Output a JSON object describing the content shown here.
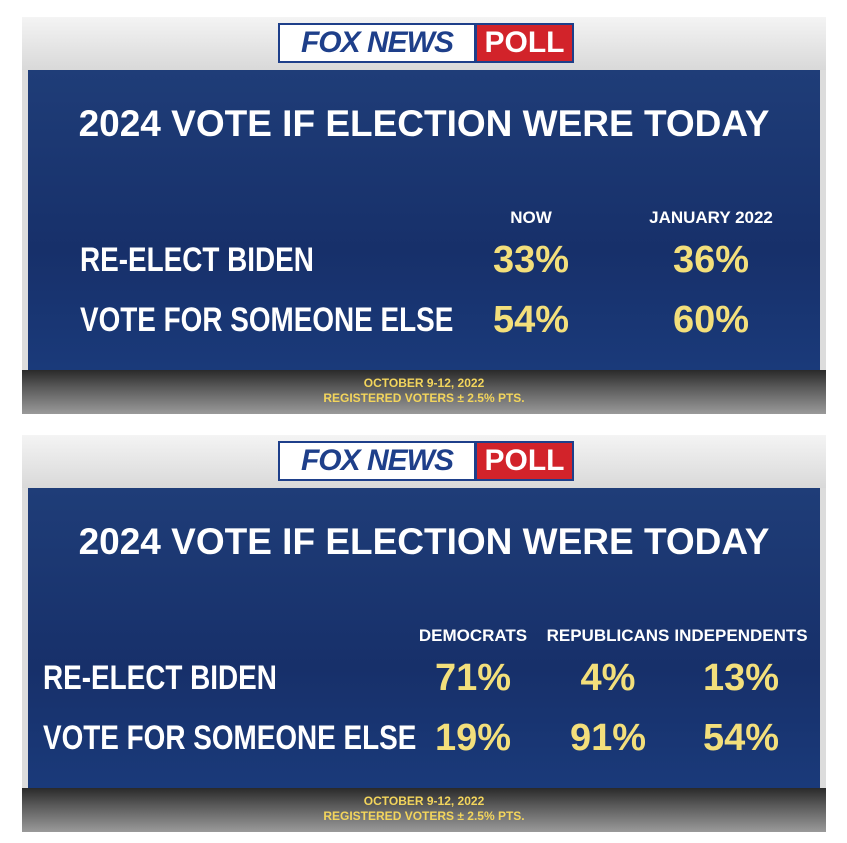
{
  "panels": [
    {
      "logo": {
        "brand": "FOX NEWS",
        "badge": "POLL"
      },
      "title": "2024 VOTE IF ELECTION WERE TODAY",
      "columns": [
        "NOW",
        "JANUARY 2022"
      ],
      "rows": [
        {
          "label": "RE-ELECT BIDEN",
          "values": [
            "33%",
            "36%"
          ]
        },
        {
          "label": "VOTE FOR SOMEONE ELSE",
          "values": [
            "54%",
            "60%"
          ]
        }
      ],
      "footer": [
        "OCTOBER 9-12, 2022",
        "REGISTERED VOTERS ± 2.5% PTS."
      ]
    },
    {
      "logo": {
        "brand": "FOX NEWS",
        "badge": "POLL"
      },
      "title": "2024 VOTE IF ELECTION WERE TODAY",
      "columns": [
        "DEMOCRATS",
        "REPUBLICANS",
        "INDEPENDENTS"
      ],
      "rows": [
        {
          "label": "RE-ELECT BIDEN",
          "values": [
            "71%",
            "4%",
            "13%"
          ]
        },
        {
          "label": "VOTE FOR SOMEONE ELSE",
          "values": [
            "19%",
            "91%",
            "54%"
          ]
        }
      ],
      "footer": [
        "OCTOBER 9-12, 2022",
        "REGISTERED VOTERS ± 2.5% PTS."
      ]
    }
  ]
}
